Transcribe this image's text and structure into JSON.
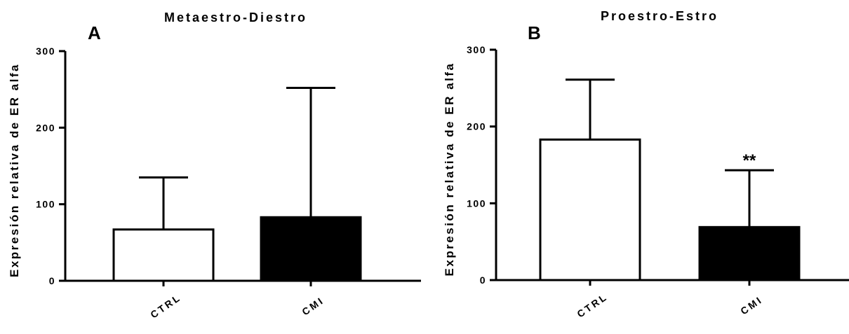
{
  "chart_data": [
    {
      "type": "bar",
      "panel": "A",
      "title": "Metaestro-Diestro",
      "xlabel": "",
      "ylabel": "Expresión relativa de ER alfa",
      "ylim": [
        0,
        300
      ],
      "yticks": [
        "0",
        "100",
        "200",
        "300"
      ],
      "categories": [
        "CTRL",
        "CMI"
      ],
      "values": [
        67,
        83
      ],
      "error_upper": [
        135,
        252
      ],
      "bar_colors": [
        "#ffffff",
        "#000000"
      ],
      "annotations": [
        "",
        ""
      ],
      "grid": false
    },
    {
      "type": "bar",
      "panel": "B",
      "title": "Proestro-Estro",
      "xlabel": "",
      "ylabel": "Expresión relativa de ER alfa",
      "ylim": [
        0,
        300
      ],
      "yticks": [
        "0",
        "100",
        "200",
        "300"
      ],
      "categories": [
        "CTRL",
        "CMI"
      ],
      "values": [
        183,
        69
      ],
      "error_upper": [
        261,
        143
      ],
      "bar_colors": [
        "#ffffff",
        "#000000"
      ],
      "annotations": [
        "",
        "**"
      ],
      "grid": false
    }
  ]
}
